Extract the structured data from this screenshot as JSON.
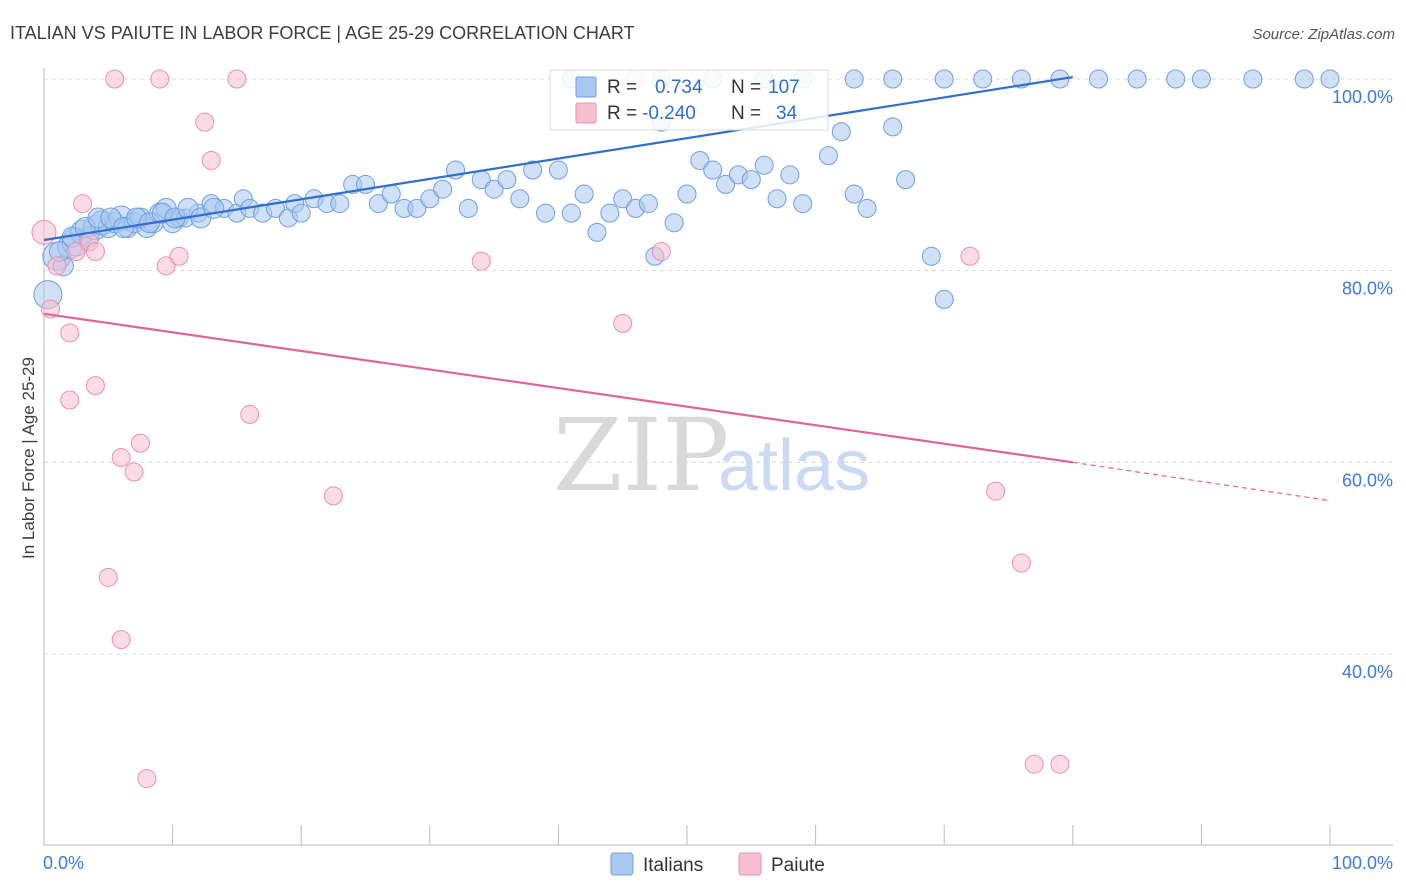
{
  "title": "ITALIAN VS PAIUTE IN LABOR FORCE | AGE 25-29 CORRELATION CHART",
  "source": "Source: ZipAtlas.com",
  "watermark": {
    "zip": "ZIP",
    "atlas": "atlas"
  },
  "legend": {
    "r_label": "R =",
    "n_label": "N =",
    "rows": [
      {
        "r": "0.734",
        "n": "107"
      },
      {
        "r": "-0.240",
        "n": "34"
      }
    ]
  },
  "bottom_legend": [
    "Italians",
    "Paiute"
  ],
  "colors": {
    "italians_fill": "#a9c8f0",
    "italians_stroke": "#6f9fe0",
    "italians_line": "#2f6fd0",
    "paiute_fill": "#f7bfd0",
    "paiute_stroke": "#ec8fae",
    "paiute_line": "#e0649a",
    "axis_text": "#3d7bd6"
  },
  "chart_data": {
    "type": "scatter",
    "title": "ITALIAN VS PAIUTE IN LABOR FORCE | AGE 25-29 CORRELATION CHART",
    "xlabel": "",
    "ylabel": "In Labor Force | Age 25-29",
    "xlim": [
      0,
      100
    ],
    "ylim": [
      20,
      100
    ],
    "x_tick_labels": [
      "0.0%",
      "100.0%"
    ],
    "y_ticks": [
      100,
      80,
      60,
      40
    ],
    "y_tick_labels": [
      "100.0%",
      "80.0%",
      "60.0%",
      "40.0%"
    ],
    "grid": true,
    "legend_position": "top-center",
    "series": [
      {
        "name": "Italians",
        "r": 0.734,
        "n": 107,
        "trend": {
          "x": [
            0,
            80
          ],
          "y": [
            83.2,
            100.2
          ]
        },
        "points": [
          [
            0.3,
            77.5,
            14
          ],
          [
            1.0,
            81.5,
            14
          ],
          [
            1.5,
            80.5,
            10
          ],
          [
            2.0,
            82.5,
            12
          ],
          [
            2.5,
            83.0,
            14
          ],
          [
            3.0,
            84.0,
            12
          ],
          [
            3.5,
            83.5,
            10
          ],
          [
            4.0,
            84.5,
            12
          ],
          [
            4.5,
            85.0,
            12
          ],
          [
            5.0,
            84.5,
            10
          ],
          [
            5.5,
            85.0,
            10
          ],
          [
            6.0,
            85.5,
            12
          ],
          [
            6.5,
            84.5,
            10
          ],
          [
            7.0,
            85.0,
            10
          ],
          [
            7.5,
            85.5,
            10
          ],
          [
            8.0,
            84.5,
            10
          ],
          [
            8.5,
            85.0,
            10
          ],
          [
            9.0,
            86.0,
            10
          ],
          [
            9.5,
            86.5,
            10
          ],
          [
            10.0,
            85.0,
            10
          ],
          [
            10.5,
            85.5,
            9
          ],
          [
            11.0,
            85.5,
            9
          ],
          [
            12.0,
            86.0,
            9
          ],
          [
            13.0,
            87.0,
            9
          ],
          [
            14.0,
            86.5,
            9
          ],
          [
            15.0,
            86.0,
            9
          ],
          [
            15.5,
            87.5,
            9
          ],
          [
            16.0,
            86.5,
            9
          ],
          [
            17.0,
            86.0,
            9
          ],
          [
            18.0,
            86.5,
            9
          ],
          [
            19.0,
            85.5,
            9
          ],
          [
            19.5,
            87.0,
            9
          ],
          [
            20.0,
            86.0,
            9
          ],
          [
            21.0,
            87.5,
            9
          ],
          [
            22.0,
            87.0,
            9
          ],
          [
            23.0,
            87.0,
            9
          ],
          [
            24.0,
            89.0,
            9
          ],
          [
            25.0,
            89.0,
            9
          ],
          [
            26.0,
            87.0,
            9
          ],
          [
            27.0,
            88.0,
            9
          ],
          [
            28.0,
            86.5,
            9
          ],
          [
            29.0,
            86.5,
            9
          ],
          [
            30.0,
            87.5,
            9
          ],
          [
            31.0,
            88.5,
            9
          ],
          [
            32.0,
            90.5,
            9
          ],
          [
            33.0,
            86.5,
            9
          ],
          [
            34.0,
            89.5,
            9
          ],
          [
            35.0,
            88.5,
            9
          ],
          [
            36.0,
            89.5,
            9
          ],
          [
            37.0,
            87.5,
            9
          ],
          [
            38.0,
            90.5,
            9
          ],
          [
            39.0,
            86.0,
            9
          ],
          [
            40.0,
            90.5,
            9
          ],
          [
            41.0,
            86.0,
            9
          ],
          [
            42.0,
            88.0,
            9
          ],
          [
            43.0,
            84.0,
            9
          ],
          [
            44.0,
            86.0,
            9
          ],
          [
            45.0,
            87.5,
            9
          ],
          [
            46.0,
            86.5,
            9
          ],
          [
            47.0,
            87.0,
            9
          ],
          [
            47.5,
            81.5,
            9
          ],
          [
            48.0,
            95.5,
            9
          ],
          [
            49.0,
            85.0,
            9
          ],
          [
            50.0,
            88.0,
            9
          ],
          [
            51.0,
            91.5,
            9
          ],
          [
            52.0,
            90.5,
            9
          ],
          [
            53.0,
            89.0,
            9
          ],
          [
            54.0,
            90.0,
            9
          ],
          [
            55.0,
            89.5,
            9
          ],
          [
            56.0,
            91.0,
            9
          ],
          [
            57.0,
            87.5,
            9
          ],
          [
            58.0,
            90.0,
            9
          ],
          [
            59.0,
            87.0,
            9
          ],
          [
            61.0,
            92.0,
            9
          ],
          [
            62.0,
            94.5,
            9
          ],
          [
            63.0,
            88.0,
            9
          ],
          [
            64.0,
            86.5,
            9
          ],
          [
            66.0,
            95.0,
            9
          ],
          [
            67.0,
            89.5,
            9
          ],
          [
            69.0,
            81.5,
            9
          ],
          [
            70.0,
            77.0,
            9
          ],
          [
            41.0,
            100.0,
            9
          ],
          [
            48.0,
            100.0,
            9
          ],
          [
            52.0,
            100.0,
            9
          ],
          [
            56.0,
            100.0,
            9
          ],
          [
            59.0,
            100.0,
            9
          ],
          [
            63.0,
            100.0,
            9
          ],
          [
            66.0,
            100.0,
            9
          ],
          [
            70.0,
            100.0,
            9
          ],
          [
            73.0,
            100.0,
            9
          ],
          [
            76.0,
            100.0,
            9
          ],
          [
            79.0,
            100.0,
            9
          ],
          [
            82.0,
            100.0,
            9
          ],
          [
            85.0,
            100.0,
            9
          ],
          [
            88.0,
            100.0,
            9
          ],
          [
            90.0,
            100.0,
            9
          ],
          [
            94.0,
            100.0,
            9
          ],
          [
            98.0,
            100.0,
            9
          ],
          [
            100.0,
            100.0,
            9
          ],
          [
            1.2,
            82.0,
            10
          ],
          [
            2.2,
            83.5,
            10
          ],
          [
            3.2,
            84.5,
            10
          ],
          [
            4.2,
            85.5,
            10
          ],
          [
            5.2,
            85.5,
            10
          ],
          [
            6.2,
            84.5,
            10
          ],
          [
            7.2,
            85.5,
            10
          ],
          [
            8.2,
            85.0,
            10
          ],
          [
            9.2,
            86.0,
            10
          ],
          [
            10.2,
            85.5,
            10
          ],
          [
            11.2,
            86.5,
            10
          ],
          [
            12.2,
            85.5,
            10
          ],
          [
            13.2,
            86.5,
            10
          ]
        ]
      },
      {
        "name": "Paiute",
        "r": -0.24,
        "n": 34,
        "trend": {
          "x": [
            0,
            80
          ],
          "y": [
            75.5,
            60.0
          ]
        },
        "trend_dashed": {
          "x": [
            80,
            100
          ],
          "y": [
            60.0,
            56.0
          ]
        },
        "points": [
          [
            0.0,
            84.0,
            12
          ],
          [
            0.5,
            76.0,
            9
          ],
          [
            1.0,
            80.5,
            9
          ],
          [
            2.0,
            73.5,
            9
          ],
          [
            2.0,
            66.5,
            9
          ],
          [
            2.5,
            82.0,
            9
          ],
          [
            3.0,
            87.0,
            9
          ],
          [
            3.5,
            83.0,
            9
          ],
          [
            4.0,
            82.0,
            9
          ],
          [
            4.0,
            68.0,
            9
          ],
          [
            5.0,
            48.0,
            9
          ],
          [
            5.5,
            100.0,
            9
          ],
          [
            6.0,
            60.5,
            9
          ],
          [
            6.0,
            41.5,
            9
          ],
          [
            7.0,
            59.0,
            9
          ],
          [
            7.5,
            62.0,
            9
          ],
          [
            8.0,
            27.0,
            9
          ],
          [
            9.0,
            100.0,
            9
          ],
          [
            9.5,
            80.5,
            9
          ],
          [
            10.5,
            81.5,
            9
          ],
          [
            12.5,
            95.5,
            9
          ],
          [
            13.0,
            91.5,
            9
          ],
          [
            15.0,
            100.0,
            9
          ],
          [
            16.0,
            65.0,
            9
          ],
          [
            22.5,
            56.5,
            9
          ],
          [
            34.0,
            81.0,
            9
          ],
          [
            45.0,
            74.5,
            9
          ],
          [
            48.0,
            82.0,
            9
          ],
          [
            72.0,
            81.5,
            9
          ],
          [
            74.0,
            57.0,
            9
          ],
          [
            76.0,
            49.5,
            9
          ],
          [
            77.0,
            28.5,
            9
          ],
          [
            79.0,
            28.5,
            9
          ],
          [
            46.0,
            100.0,
            9
          ]
        ]
      }
    ]
  }
}
